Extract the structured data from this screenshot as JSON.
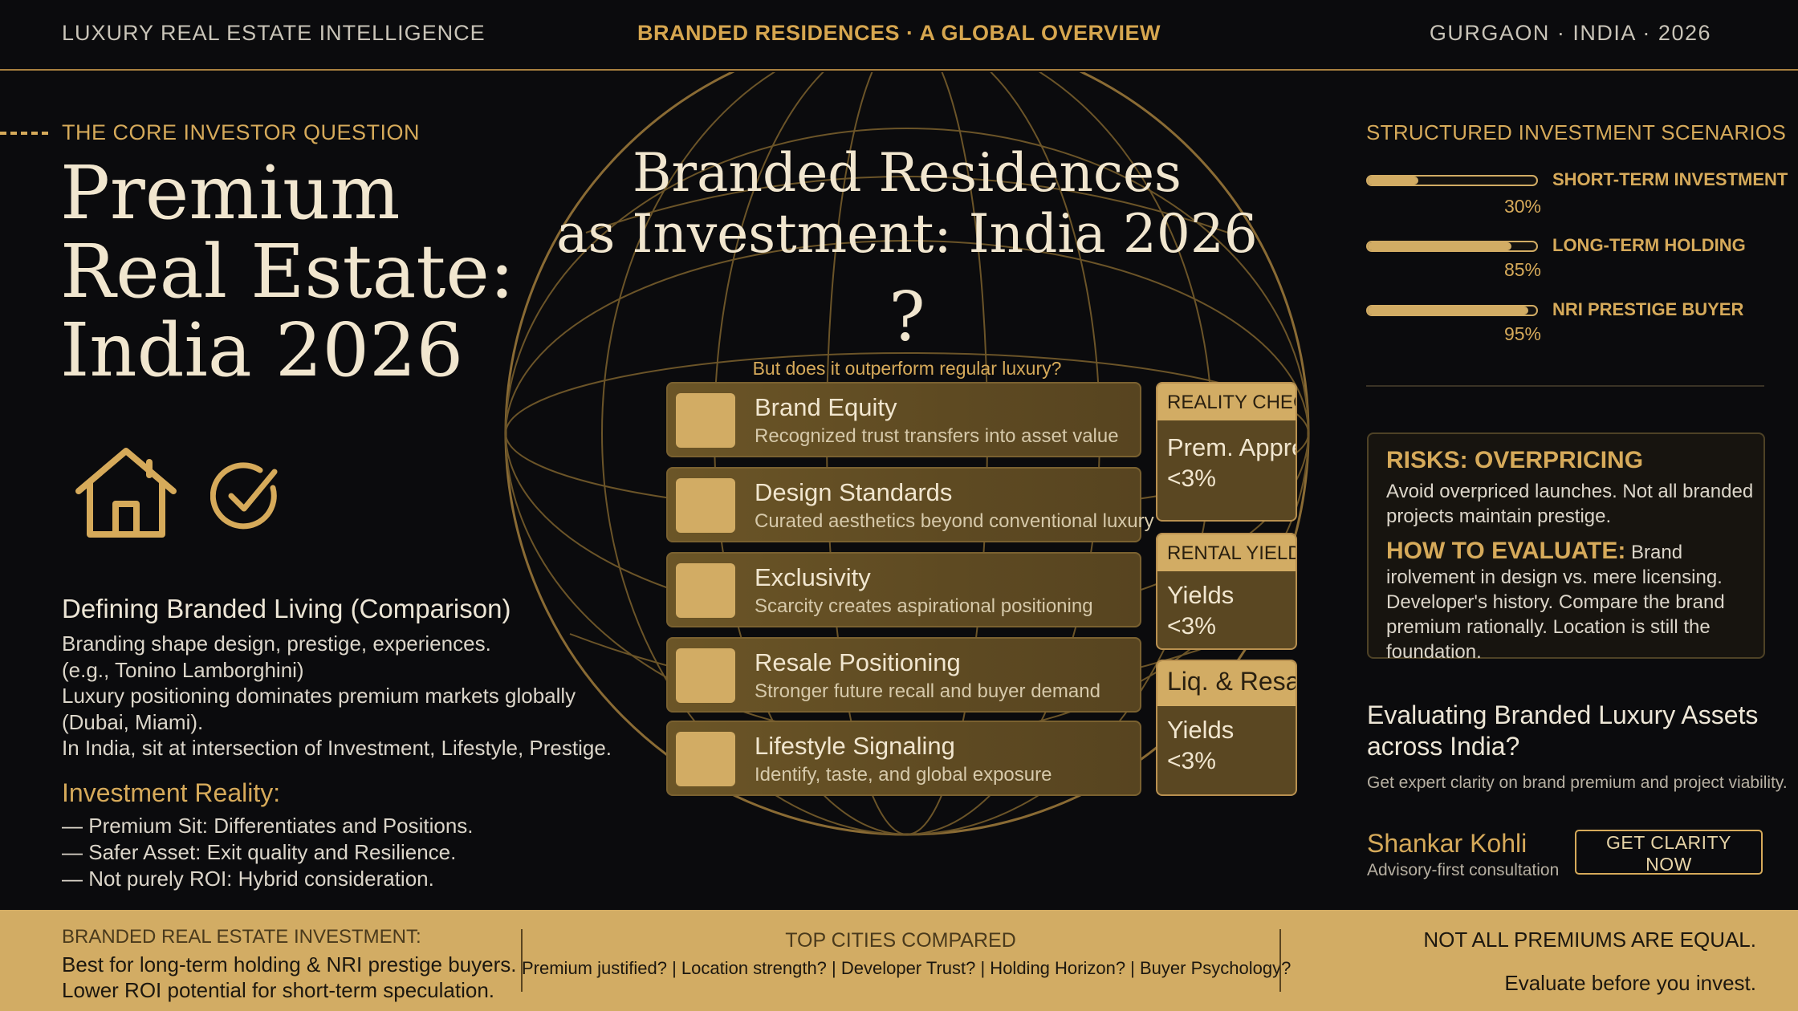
{
  "header": {
    "brand": "LUXURY REAL ESTATE INTELLIGENCE",
    "center": "BRANDED RESIDENCES · A GLOBAL OVERVIEW",
    "right": "GURGAON · INDIA · 2026"
  },
  "left": {
    "kicker": "THE CORE INVESTOR QUESTION",
    "title_lines": [
      "Premium",
      "Real Estate:",
      "India 2026"
    ],
    "defining_heading": "Defining Branded Living (Comparison)",
    "defining_lines": [
      "Branding shape design, prestige, experiences.",
      "(e.g., Tonino Lamborghini)",
      "Luxury positioning dominates premium markets globally",
      "(Dubai, Miami).",
      "In India, sit at intersection of Investment, Lifestyle, Prestige."
    ],
    "reality_heading": "Investment Reality:",
    "reality_items": [
      "— Premium Sit: Differentiates and Positions.",
      "— Safer Asset: Exit quality and Resilience.",
      "— Not purely ROI: Hybrid consideration."
    ]
  },
  "center": {
    "title_lines": [
      "Branded Residences",
      "as Investment: India 2026"
    ],
    "question_mark": "?",
    "subtitle": "But does it outperform regular luxury?",
    "cards": [
      {
        "title": "Brand Equity",
        "subtitle": "Recognized trust transfers into asset value"
      },
      {
        "title": "Design Standards",
        "subtitle": "Curated aesthetics beyond conventional luxury"
      },
      {
        "title": "Exclusivity",
        "subtitle": "Scarcity creates aspirational positioning"
      },
      {
        "title": "Resale Positioning",
        "subtitle": "Stronger future recall and buyer demand"
      },
      {
        "title": "Lifestyle Signaling",
        "subtitle": "Identify, taste, and global exposure"
      }
    ],
    "checks": [
      {
        "header": "REALITY CHECKS",
        "line1": "Prem. Apprec.",
        "line2": "<3%"
      },
      {
        "header": "RENTAL YIELDS",
        "line1": "Yields",
        "line2": "<3%"
      },
      {
        "header": "Liq. & Resale",
        "line1": "Yields",
        "line2": "<3%"
      }
    ]
  },
  "right": {
    "scenarios_heading": "STRUCTURED INVESTMENT SCENARIOS",
    "scenarios": [
      {
        "label": "SHORT-TERM INVESTMENT",
        "percent_label": "30%",
        "value": 0.3
      },
      {
        "label": "LONG-TERM HOLDING",
        "percent_label": "85%",
        "value": 0.85
      },
      {
        "label": "NRI PRESTIGE BUYER",
        "percent_label": "95%",
        "value": 0.95
      }
    ],
    "risk_heading": "RISKS: OVERPRICING",
    "risk_text": "Avoid overpriced launches. Not all branded projects maintain prestige.",
    "evaluate_label": "HOW TO EVALUATE:",
    "evaluate_text": "Brand irolvement in design vs. mere licensing. Developer's history. Compare the brand premium rationally. Location is still the foundation.",
    "eval_heading": "Evaluating Branded Luxury Assets across India?",
    "eval_sub": "Get expert clarity on brand premium and project viability.",
    "person_name": "Shankar Kohli",
    "person_role": "Advisory-first consultation",
    "cta": "GET CLARITY NOW"
  },
  "footer": {
    "col1_heading": "BRANDED REAL ESTATE INVESTMENT:",
    "col1_line1": "Best for long-term holding & NRI prestige buyers.",
    "col1_line2": "Lower ROI potential for short-term speculation.",
    "col2_heading": "TOP CITIES COMPARED",
    "col2_text": "Premium justified? | Location strength? | Developer Trust? | Holding Horizon? | Buyer Psychology?",
    "col3_line1": "NOT ALL PREMIUMS ARE EQUAL.",
    "col3_line2": "Evaluate before you invest."
  },
  "colors": {
    "background": "#0b0b0d",
    "gold": "#d6aa5a",
    "card": "#5e4a22",
    "footer": "#d2ac64"
  },
  "icons": [
    "house-icon",
    "checkmark-circle-icon"
  ]
}
